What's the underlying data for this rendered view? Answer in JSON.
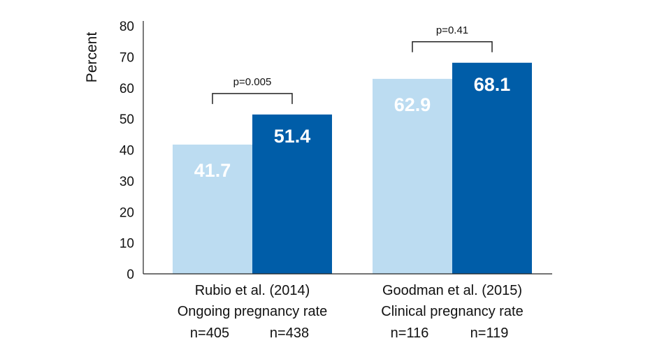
{
  "chart_data": {
    "type": "bar",
    "ylabel": "Percent",
    "ylim": [
      0,
      80
    ],
    "yticks": [
      "0",
      "10",
      "20",
      "30",
      "40",
      "50",
      "60",
      "70",
      "80"
    ],
    "colors": {
      "light": "#bcdcf1",
      "dark": "#005da8"
    },
    "groups": [
      {
        "title": "Rubio et al. (2014)",
        "subtitle": "Ongoing pregnancy rate",
        "bars": [
          {
            "value": 41.7,
            "label": "41.7",
            "n": "n=405",
            "color": "light"
          },
          {
            "value": 51.4,
            "label": "51.4",
            "n": "n=438",
            "color": "dark"
          }
        ],
        "p_value": "p=0.005"
      },
      {
        "title": "Goodman et al. (2015)",
        "subtitle": "Clinical pregnancy rate",
        "bars": [
          {
            "value": 62.9,
            "label": "62.9",
            "n": "n=116",
            "color": "light"
          },
          {
            "value": 68.1,
            "label": "68.1",
            "n": "n=119",
            "color": "dark"
          }
        ],
        "p_value": "p=0.41"
      }
    ]
  }
}
